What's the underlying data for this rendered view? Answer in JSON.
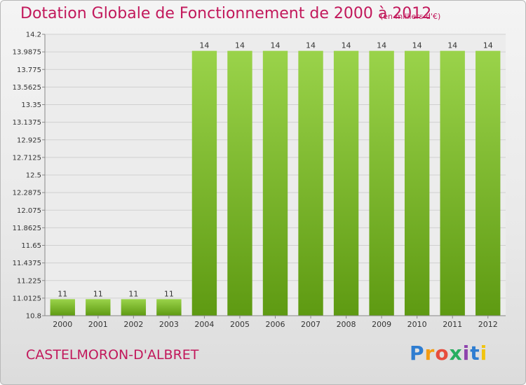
{
  "header": {
    "title": "Dotation Globale de Fonctionnement de 2000 à 2012",
    "subtitle": "(en milliers d'€)"
  },
  "footer": {
    "place": "CASTELMORON-D'ALBRET",
    "logo": {
      "text": "Proxiti",
      "colors": [
        "#2e7dd1",
        "#f39c12",
        "#e74c3c",
        "#27ae60",
        "#8e44ad",
        "#2e7dd1",
        "#f1c40f"
      ]
    }
  },
  "chart_data": {
    "type": "bar",
    "categories": [
      "2000",
      "2001",
      "2002",
      "2003",
      "2004",
      "2005",
      "2006",
      "2007",
      "2008",
      "2009",
      "2010",
      "2011",
      "2012"
    ],
    "values": [
      11,
      11,
      11,
      11,
      14,
      14,
      14,
      14,
      14,
      14,
      14,
      14,
      14
    ],
    "data_labels": [
      "11",
      "11",
      "11",
      "11",
      "14",
      "14",
      "14",
      "14",
      "14",
      "14",
      "14",
      "14",
      "14"
    ],
    "title": "Dotation Globale de Fonctionnement de 2000 à 2012",
    "ylim": [
      10.8,
      14.2
    ],
    "yticks": [
      10.8,
      11.0125,
      11.225,
      11.4375,
      11.65,
      11.8625,
      12.075,
      12.2875,
      12.5,
      12.7125,
      12.925,
      13.1375,
      13.35,
      13.5625,
      13.775,
      13.9875,
      14.2
    ],
    "ytick_labels": [
      "10.8",
      "11.0125",
      "11.225",
      "11.4375",
      "11.65",
      "11.8625",
      "12.075",
      "12.2875",
      "12.5",
      "12.7125",
      "12.925",
      "13.1375",
      "13.35",
      "13.5625",
      "13.775",
      "13.9875",
      "14.2"
    ],
    "grid": true,
    "bar_color": "#7cbf2a"
  }
}
